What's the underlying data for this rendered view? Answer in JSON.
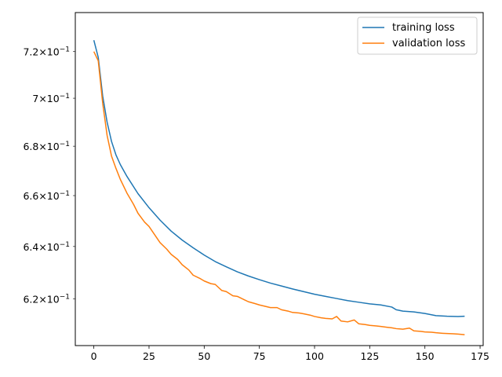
{
  "chart_data": {
    "type": "line",
    "title": "",
    "xlabel": "",
    "ylabel": "",
    "xlim": [
      -8.4,
      176.4
    ],
    "ylim": [
      0.6028,
      0.7372
    ],
    "y_scale": "log",
    "grid": false,
    "legend_position": "top-right",
    "x_ticks": [
      0,
      25,
      50,
      75,
      100,
      125,
      150,
      175
    ],
    "x_tick_labels": [
      "0",
      "25",
      "50",
      "75",
      "100",
      "125",
      "150",
      "175"
    ],
    "y_ticks": [
      0.62,
      0.64,
      0.66,
      0.68,
      0.7,
      0.72
    ],
    "y_tick_labels": [
      {
        "mantissa": "6.2",
        "base": "10",
        "exp": "−1"
      },
      {
        "mantissa": "6.4",
        "base": "10",
        "exp": "−1"
      },
      {
        "mantissa": "6.6",
        "base": "10",
        "exp": "−1"
      },
      {
        "mantissa": "6.8",
        "base": "10",
        "exp": "−1"
      },
      {
        "mantissa": "7",
        "base": "10",
        "exp": "−1"
      },
      {
        "mantissa": "7.2",
        "base": "10",
        "exp": "−1"
      }
    ],
    "series": [
      {
        "name": "training loss",
        "color": "#1f77b4",
        "points": [
          [
            0,
            0.725
          ],
          [
            2,
            0.7175
          ],
          [
            4,
            0.701
          ],
          [
            6,
            0.69
          ],
          [
            8,
            0.682
          ],
          [
            10,
            0.6765
          ],
          [
            12,
            0.6725
          ],
          [
            15,
            0.6677
          ],
          [
            20,
            0.6608
          ],
          [
            25,
            0.6552
          ],
          [
            30,
            0.6503
          ],
          [
            35,
            0.646
          ],
          [
            40,
            0.6425
          ],
          [
            45,
            0.6395
          ],
          [
            50,
            0.6367
          ],
          [
            55,
            0.6342
          ],
          [
            60,
            0.6322
          ],
          [
            65,
            0.6303
          ],
          [
            70,
            0.6287
          ],
          [
            75,
            0.6273
          ],
          [
            80,
            0.626
          ],
          [
            85,
            0.6249
          ],
          [
            90,
            0.6238
          ],
          [
            95,
            0.6228
          ],
          [
            100,
            0.6218
          ],
          [
            105,
            0.621
          ],
          [
            110,
            0.6202
          ],
          [
            115,
            0.6194
          ],
          [
            120,
            0.6188
          ],
          [
            125,
            0.6182
          ],
          [
            130,
            0.6178
          ],
          [
            135,
            0.617
          ],
          [
            137,
            0.616
          ],
          [
            140,
            0.6155
          ],
          [
            145,
            0.6152
          ],
          [
            150,
            0.6146
          ],
          [
            155,
            0.6138
          ],
          [
            160,
            0.6136
          ],
          [
            165,
            0.6135
          ],
          [
            168,
            0.6136
          ]
        ]
      },
      {
        "name": "validation loss",
        "color": "#ff7f0e",
        "points": [
          [
            0,
            0.72
          ],
          [
            2,
            0.716
          ],
          [
            4,
            0.698
          ],
          [
            6,
            0.6845
          ],
          [
            8,
            0.676
          ],
          [
            10,
            0.671
          ],
          [
            12,
            0.6665
          ],
          [
            15,
            0.661
          ],
          [
            18,
            0.6565
          ],
          [
            20,
            0.653
          ],
          [
            23,
            0.6495
          ],
          [
            25,
            0.6478
          ],
          [
            28,
            0.644
          ],
          [
            30,
            0.6415
          ],
          [
            33,
            0.639
          ],
          [
            35,
            0.637
          ],
          [
            38,
            0.635
          ],
          [
            40,
            0.633
          ],
          [
            43,
            0.631
          ],
          [
            45,
            0.629
          ],
          [
            48,
            0.6278
          ],
          [
            50,
            0.6268
          ],
          [
            53,
            0.6258
          ],
          [
            55,
            0.6255
          ],
          [
            58,
            0.6232
          ],
          [
            60,
            0.6228
          ],
          [
            63,
            0.6212
          ],
          [
            65,
            0.621
          ],
          [
            68,
            0.6198
          ],
          [
            70,
            0.619
          ],
          [
            73,
            0.6183
          ],
          [
            75,
            0.6178
          ],
          [
            78,
            0.6172
          ],
          [
            80,
            0.6168
          ],
          [
            83,
            0.6168
          ],
          [
            85,
            0.616
          ],
          [
            88,
            0.6155
          ],
          [
            90,
            0.615
          ],
          [
            93,
            0.6148
          ],
          [
            95,
            0.6145
          ],
          [
            98,
            0.614
          ],
          [
            100,
            0.6135
          ],
          [
            103,
            0.613
          ],
          [
            105,
            0.6128
          ],
          [
            108,
            0.6126
          ],
          [
            110,
            0.6135
          ],
          [
            112,
            0.6118
          ],
          [
            115,
            0.6115
          ],
          [
            118,
            0.6122
          ],
          [
            120,
            0.6108
          ],
          [
            123,
            0.6105
          ],
          [
            125,
            0.6102
          ],
          [
            128,
            0.61
          ],
          [
            130,
            0.6098
          ],
          [
            133,
            0.6095
          ],
          [
            135,
            0.6093
          ],
          [
            137,
            0.609
          ],
          [
            140,
            0.6088
          ],
          [
            143,
            0.6092
          ],
          [
            145,
            0.6082
          ],
          [
            148,
            0.608
          ],
          [
            150,
            0.6078
          ],
          [
            153,
            0.6077
          ],
          [
            155,
            0.6075
          ],
          [
            158,
            0.6073
          ],
          [
            160,
            0.6072
          ],
          [
            163,
            0.6071
          ],
          [
            165,
            0.607
          ],
          [
            168,
            0.6068
          ]
        ]
      }
    ]
  }
}
